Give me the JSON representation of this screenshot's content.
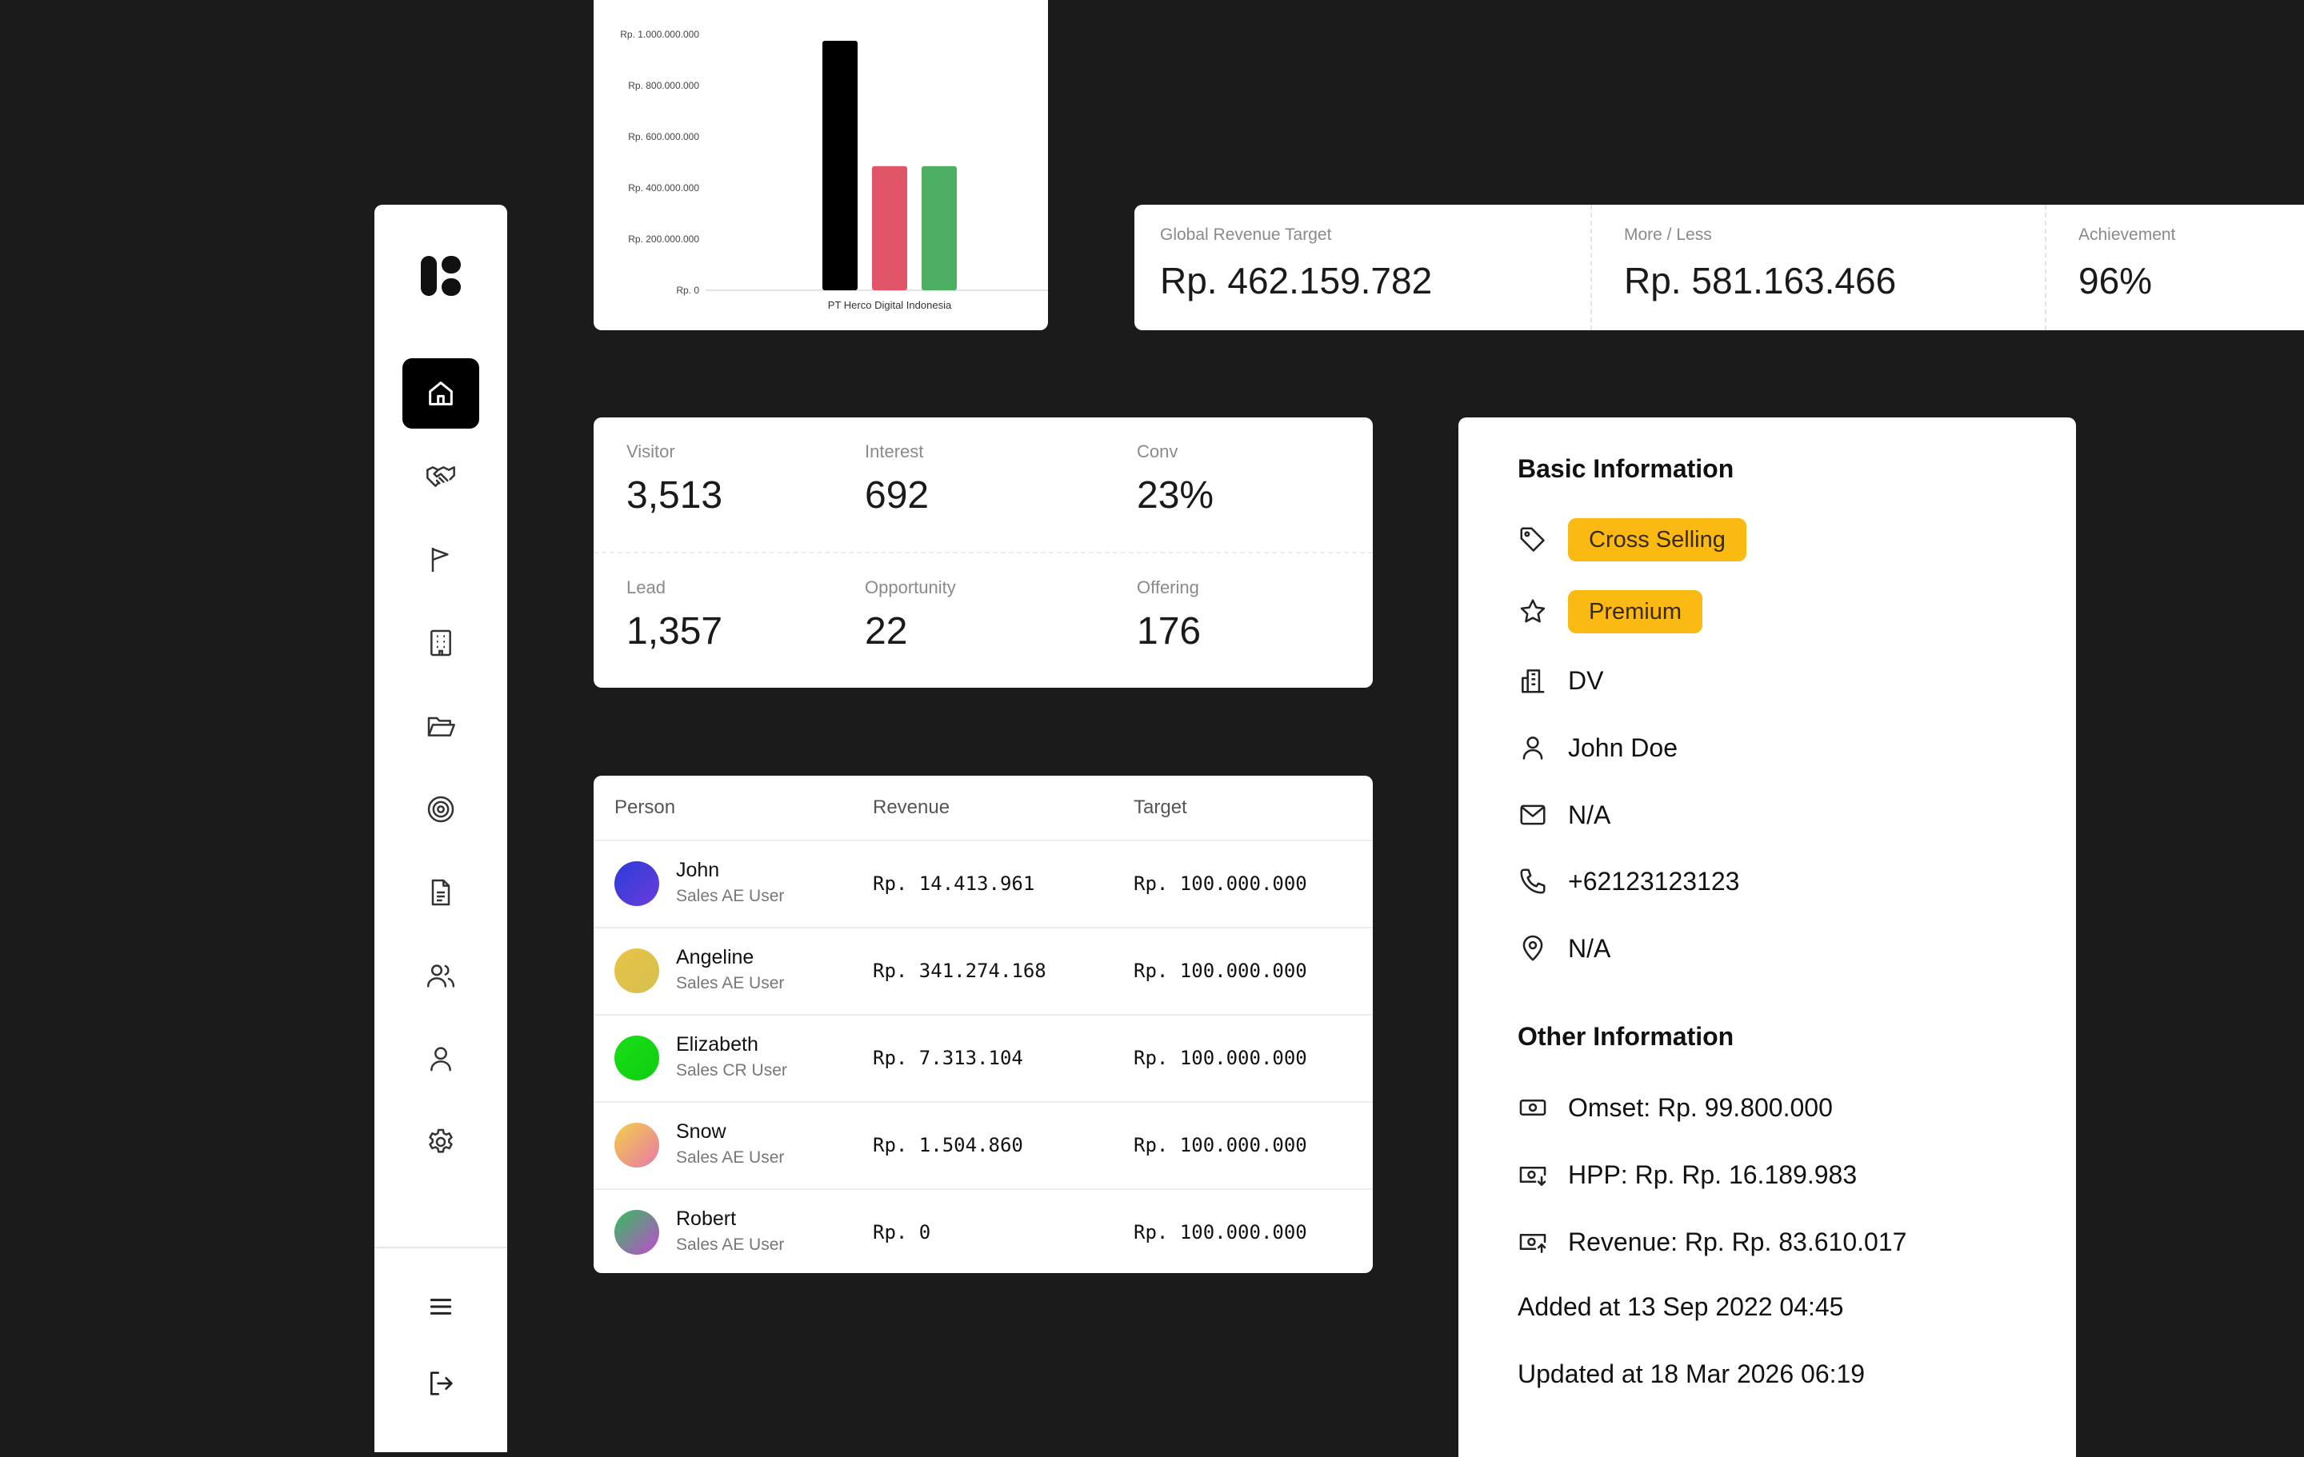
{
  "sidebar": {
    "logo_icon": "brand-logo-icon",
    "items": [
      {
        "id": "home",
        "icon": "home-icon",
        "active": true
      },
      {
        "id": "deals",
        "icon": "handshake-icon"
      },
      {
        "id": "campaign",
        "icon": "flag-icon"
      },
      {
        "id": "company",
        "icon": "building-icon"
      },
      {
        "id": "folder",
        "icon": "folder-icon"
      },
      {
        "id": "target",
        "icon": "target-icon"
      },
      {
        "id": "document",
        "icon": "document-icon"
      },
      {
        "id": "users",
        "icon": "users-icon"
      },
      {
        "id": "profile",
        "icon": "user-icon"
      },
      {
        "id": "settings",
        "icon": "gear-icon"
      }
    ],
    "bottom": [
      {
        "id": "menu",
        "icon": "hamburger-icon"
      },
      {
        "id": "logout",
        "icon": "logout-icon"
      }
    ]
  },
  "chart_data": {
    "type": "bar",
    "categories": [
      "PT Herco Digital Indonesia"
    ],
    "ytick_labels": [
      "Rp. 0",
      "Rp. 200.000.000",
      "Rp. 400.000.000",
      "Rp. 600.000.000",
      "Rp. 800.000.000",
      "Rp. 1.000.000.000"
    ],
    "ylim": [
      0,
      1000000000
    ],
    "yticks": [
      0,
      200000000,
      400000000,
      600000000,
      800000000,
      1000000000
    ],
    "series": [
      {
        "values": [
          975000000
        ],
        "color": "#000000"
      },
      {
        "values": [
          485000000
        ],
        "color": "#e05668"
      },
      {
        "values": [
          485000000
        ],
        "color": "#4caf64"
      }
    ],
    "grid": false
  },
  "kpi": [
    {
      "label": "Global Revenue Target",
      "value": "Rp. 462.159.782"
    },
    {
      "label": "More / Less",
      "value": "Rp. 581.163.466"
    },
    {
      "label": "Achievement",
      "value": "96%"
    }
  ],
  "stats": [
    {
      "label": "Visitor",
      "value": "3,513"
    },
    {
      "label": "Interest",
      "value": "692"
    },
    {
      "label": "Conv",
      "value": "23%"
    },
    {
      "label": "Lead",
      "value": "1,357"
    },
    {
      "label": "Opportunity",
      "value": "22"
    },
    {
      "label": "Offering",
      "value": "176"
    }
  ],
  "table": {
    "headers": [
      "Person",
      "Revenue",
      "Target"
    ],
    "rows": [
      {
        "name": "John",
        "role": "Sales AE User",
        "revenue": "Rp. 14.413.961",
        "target": "Rp. 100.000.000",
        "avatar": [
          "#2a3bd8",
          "#6a3ddc"
        ]
      },
      {
        "name": "Angeline",
        "role": "Sales AE User",
        "revenue": "Rp. 341.274.168",
        "target": "Rp. 100.000.000",
        "avatar": [
          "#e8c445",
          "#d4c050"
        ]
      },
      {
        "name": "Elizabeth",
        "role": "Sales CR User",
        "revenue": "Rp. 7.313.104",
        "target": "Rp. 100.000.000",
        "avatar": [
          "#18e018",
          "#10cc10"
        ]
      },
      {
        "name": "Snow",
        "role": "Sales AE User",
        "revenue": "Rp. 1.504.860",
        "target": "Rp. 100.000.000",
        "avatar": [
          "#f3cf47",
          "#e878a8"
        ]
      },
      {
        "name": "Robert",
        "role": "Sales AE User",
        "revenue": "Rp. 0",
        "target": "Rp. 100.000.000",
        "avatar": [
          "#32c05a",
          "#c04ad0"
        ]
      }
    ]
  },
  "info": {
    "basic_title": "Basic Information",
    "tag1": "Cross Selling",
    "tag2": "Premium",
    "division": "DV",
    "person": "John Doe",
    "email": "N/A",
    "phone": "+62123123123",
    "location": "N/A",
    "other_title": "Other Information",
    "omset": "Omset: Rp. 99.800.000",
    "hpp": "HPP: Rp. Rp. 16.189.983",
    "revenue": "Revenue: Rp. Rp. 83.610.017",
    "added": "Added at 13 Sep 2022 04:45",
    "updated": "Updated at 18 Mar 2026 06:19",
    "accent": "#fbba13"
  }
}
